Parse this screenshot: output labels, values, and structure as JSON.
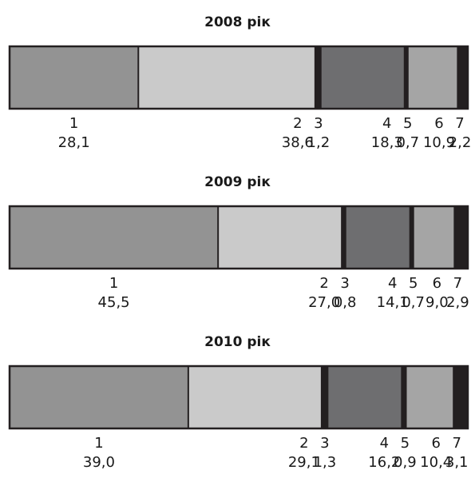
{
  "colors": {
    "1": "#939393",
    "2": "#cacaca",
    "3": "#231f20",
    "4": "#6e6e70",
    "5": "#231f20",
    "6": "#a5a5a5",
    "7": "#231f20",
    "frame": "#231f20"
  },
  "chart_data": [
    {
      "type": "bar",
      "orientation": "horizontal-stacked-100",
      "title": "2008 рік",
      "categories": [
        "1",
        "2",
        "3",
        "4",
        "5",
        "6",
        "7"
      ],
      "values": [
        28.1,
        38.6,
        1.2,
        18.3,
        0.7,
        10.9,
        2.2
      ],
      "value_labels": [
        "28,1",
        "38,6",
        "1,2",
        "18,3",
        "0,7",
        "10,9",
        "2,2"
      ]
    },
    {
      "type": "bar",
      "orientation": "horizontal-stacked-100",
      "title": "2009 рік",
      "categories": [
        "1",
        "2",
        "3",
        "4",
        "5",
        "6",
        "7"
      ],
      "values": [
        45.5,
        27.0,
        0.8,
        14.1,
        0.7,
        9.0,
        2.9
      ],
      "value_labels": [
        "45,5",
        "27,0",
        "0,8",
        "14,1",
        "0,7",
        "9,0",
        "2,9"
      ]
    },
    {
      "type": "bar",
      "orientation": "horizontal-stacked-100",
      "title": "2010 рік",
      "categories": [
        "1",
        "2",
        "3",
        "4",
        "5",
        "6",
        "7"
      ],
      "values": [
        39.0,
        29.1,
        1.3,
        16.2,
        0.9,
        10.4,
        3.1
      ],
      "value_labels": [
        "39,0",
        "29,1",
        "1,3",
        "16,2",
        "0,9",
        "10,4",
        "3,1"
      ]
    }
  ]
}
